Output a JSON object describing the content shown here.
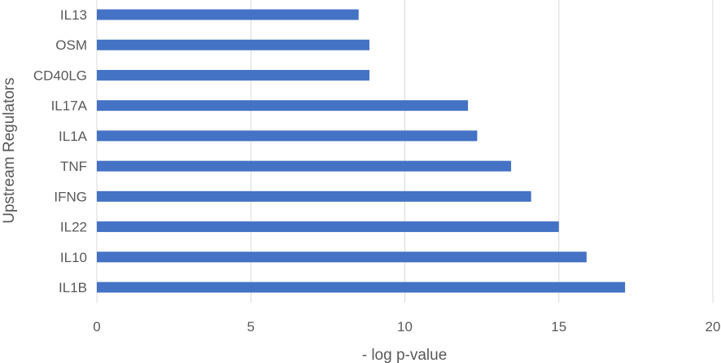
{
  "chart_data": {
    "type": "bar",
    "orientation": "horizontal",
    "categories": [
      "IL13",
      "OSM",
      "CD40LG",
      "IL17A",
      "IL1A",
      "TNF",
      "IFNG",
      "IL22",
      "IL10",
      "IL1B"
    ],
    "series": [
      {
        "values": [
          8.5,
          8.85,
          8.85,
          12.05,
          12.35,
          13.45,
          14.1,
          15.0,
          15.9,
          17.15
        ]
      }
    ],
    "xlabel": "- log p-value",
    "ylabel": "Upstream Regulators",
    "xlim": [
      0,
      20
    ],
    "xticks": [
      "0",
      "5",
      "10",
      "15",
      "20"
    ],
    "grid": "vertical",
    "legend": "none",
    "bar_color": "#4472C4"
  }
}
